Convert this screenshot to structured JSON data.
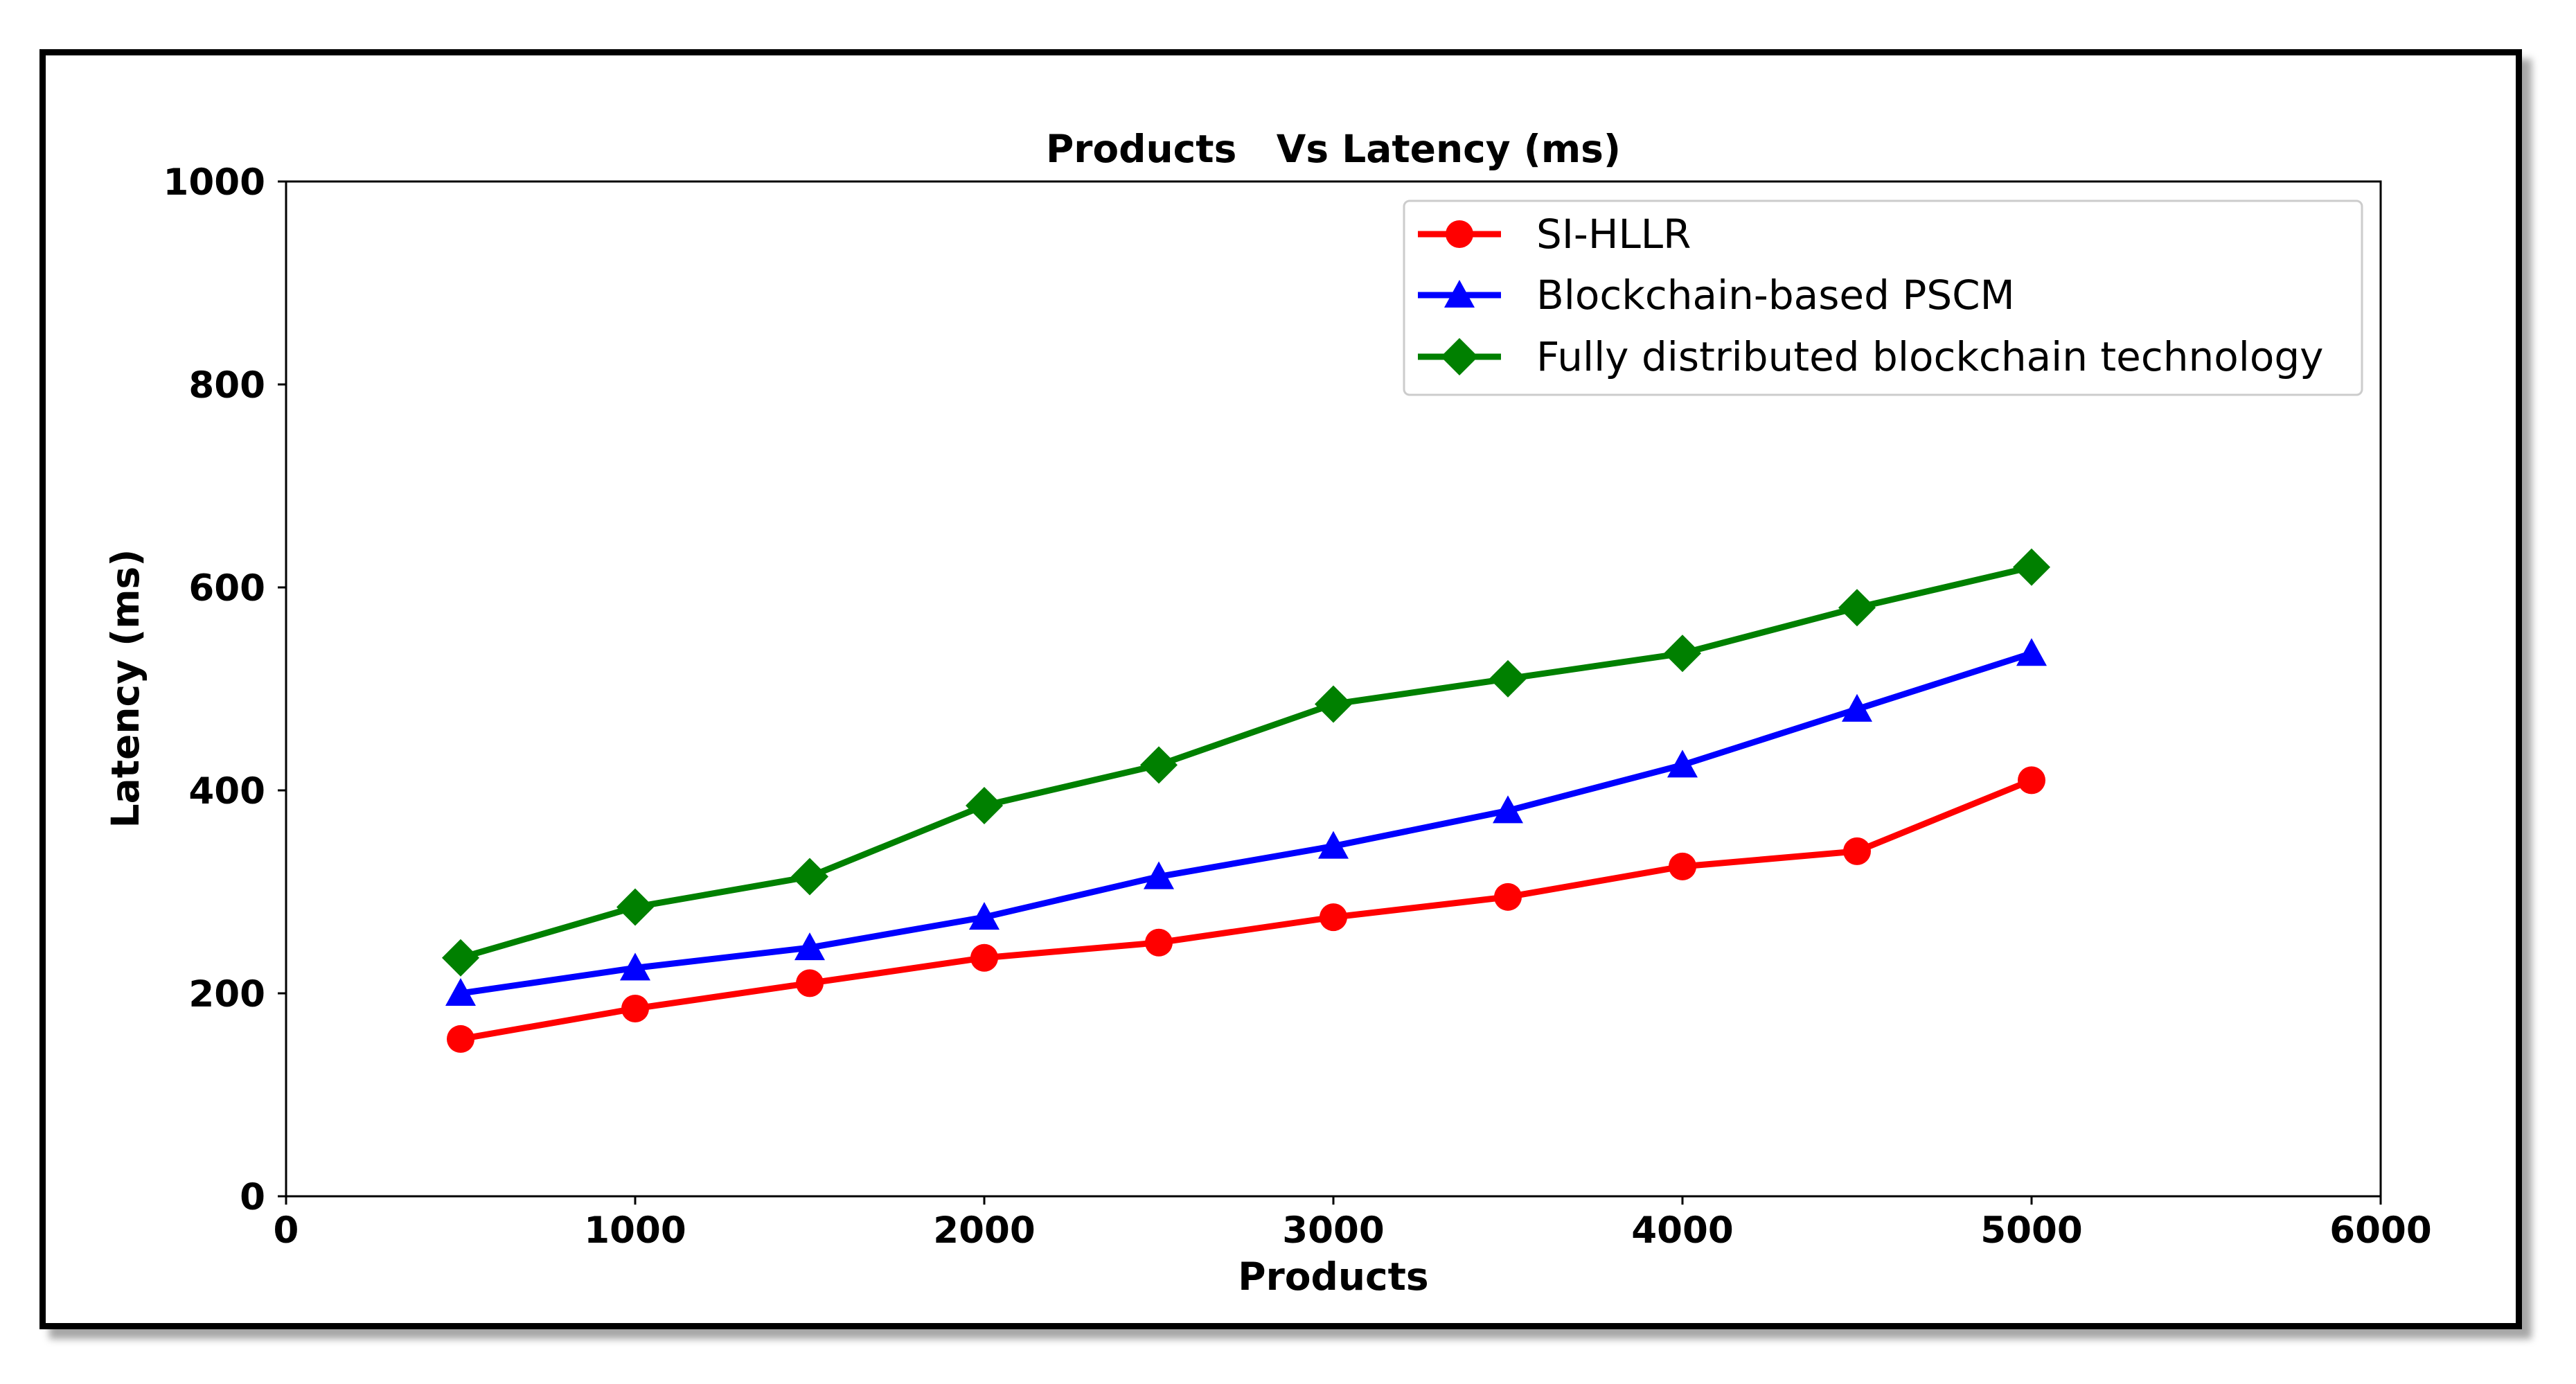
{
  "chart_data": {
    "type": "line",
    "title": "Products   Vs Latency (ms)",
    "xlabel": "Products",
    "ylabel": "Latency (ms)",
    "xlim": [
      0,
      6000
    ],
    "ylim": [
      0,
      1000
    ],
    "xticks": [
      0,
      1000,
      2000,
      3000,
      4000,
      5000,
      6000
    ],
    "yticks": [
      0,
      200,
      400,
      600,
      800,
      1000
    ],
    "grid": false,
    "legend_position": "top-right",
    "x": [
      500,
      1000,
      1500,
      2000,
      2500,
      3000,
      3500,
      4000,
      4500,
      5000
    ],
    "series": [
      {
        "name": "SI-HLLR",
        "color": "#ff0000",
        "marker": "circle",
        "values": [
          155,
          185,
          210,
          235,
          250,
          275,
          295,
          325,
          340,
          410
        ]
      },
      {
        "name": "Blockchain-based PSCM",
        "color": "#0000ff",
        "marker": "triangle",
        "values": [
          200,
          225,
          245,
          275,
          315,
          345,
          380,
          425,
          480,
          535
        ]
      },
      {
        "name": "Fully distributed blockchain technology",
        "color": "#008000",
        "marker": "diamond",
        "values": [
          235,
          285,
          315,
          385,
          425,
          485,
          510,
          535,
          580,
          620
        ]
      }
    ]
  }
}
